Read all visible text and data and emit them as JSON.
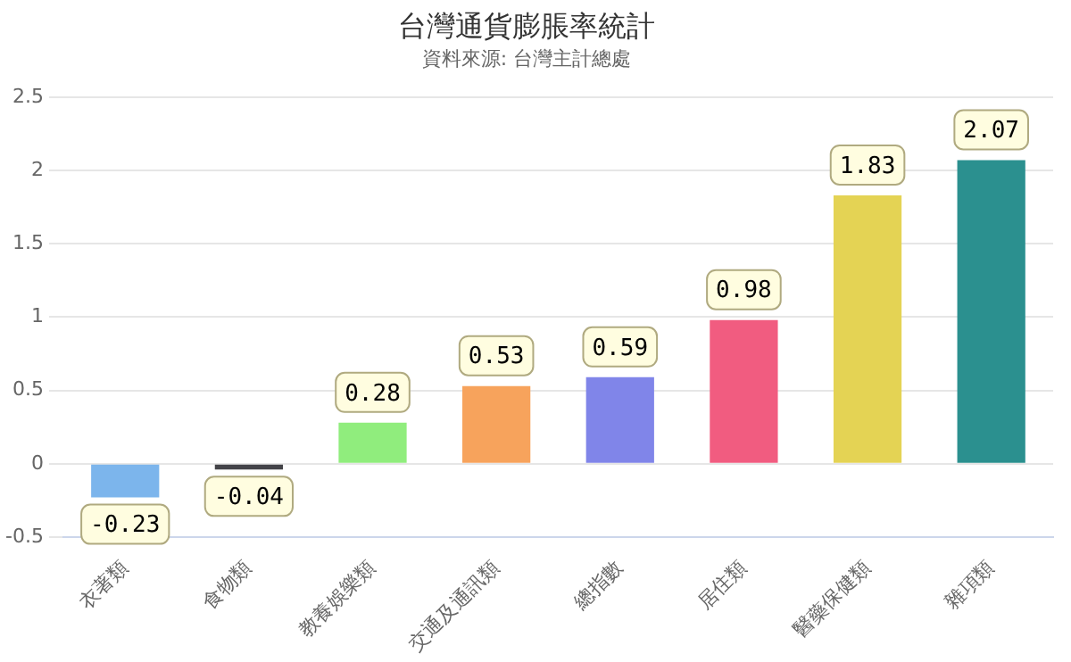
{
  "chart_data": {
    "type": "bar",
    "title": "台灣通貨膨脹率統計",
    "subtitle": "資料來源: 台灣主計總處",
    "categories": [
      "衣著類",
      "食物類",
      "教養娛樂類",
      "交通及通訊類",
      "總指數",
      "居住類",
      "醫藥保健類",
      "雜項類"
    ],
    "values": [
      -0.23,
      -0.04,
      0.28,
      0.53,
      0.59,
      0.98,
      1.83,
      2.07
    ],
    "colors": [
      "#7cb5ec",
      "#434348",
      "#90ed7d",
      "#f7a35c",
      "#8085e9",
      "#f15c80",
      "#e4d354",
      "#2b908f"
    ],
    "ylim": [
      -0.5,
      2.5
    ],
    "yticks": [
      -0.5,
      0,
      0.5,
      1,
      1.5,
      2,
      2.5
    ],
    "grid": "y",
    "legend": false,
    "data_labels": true
  }
}
